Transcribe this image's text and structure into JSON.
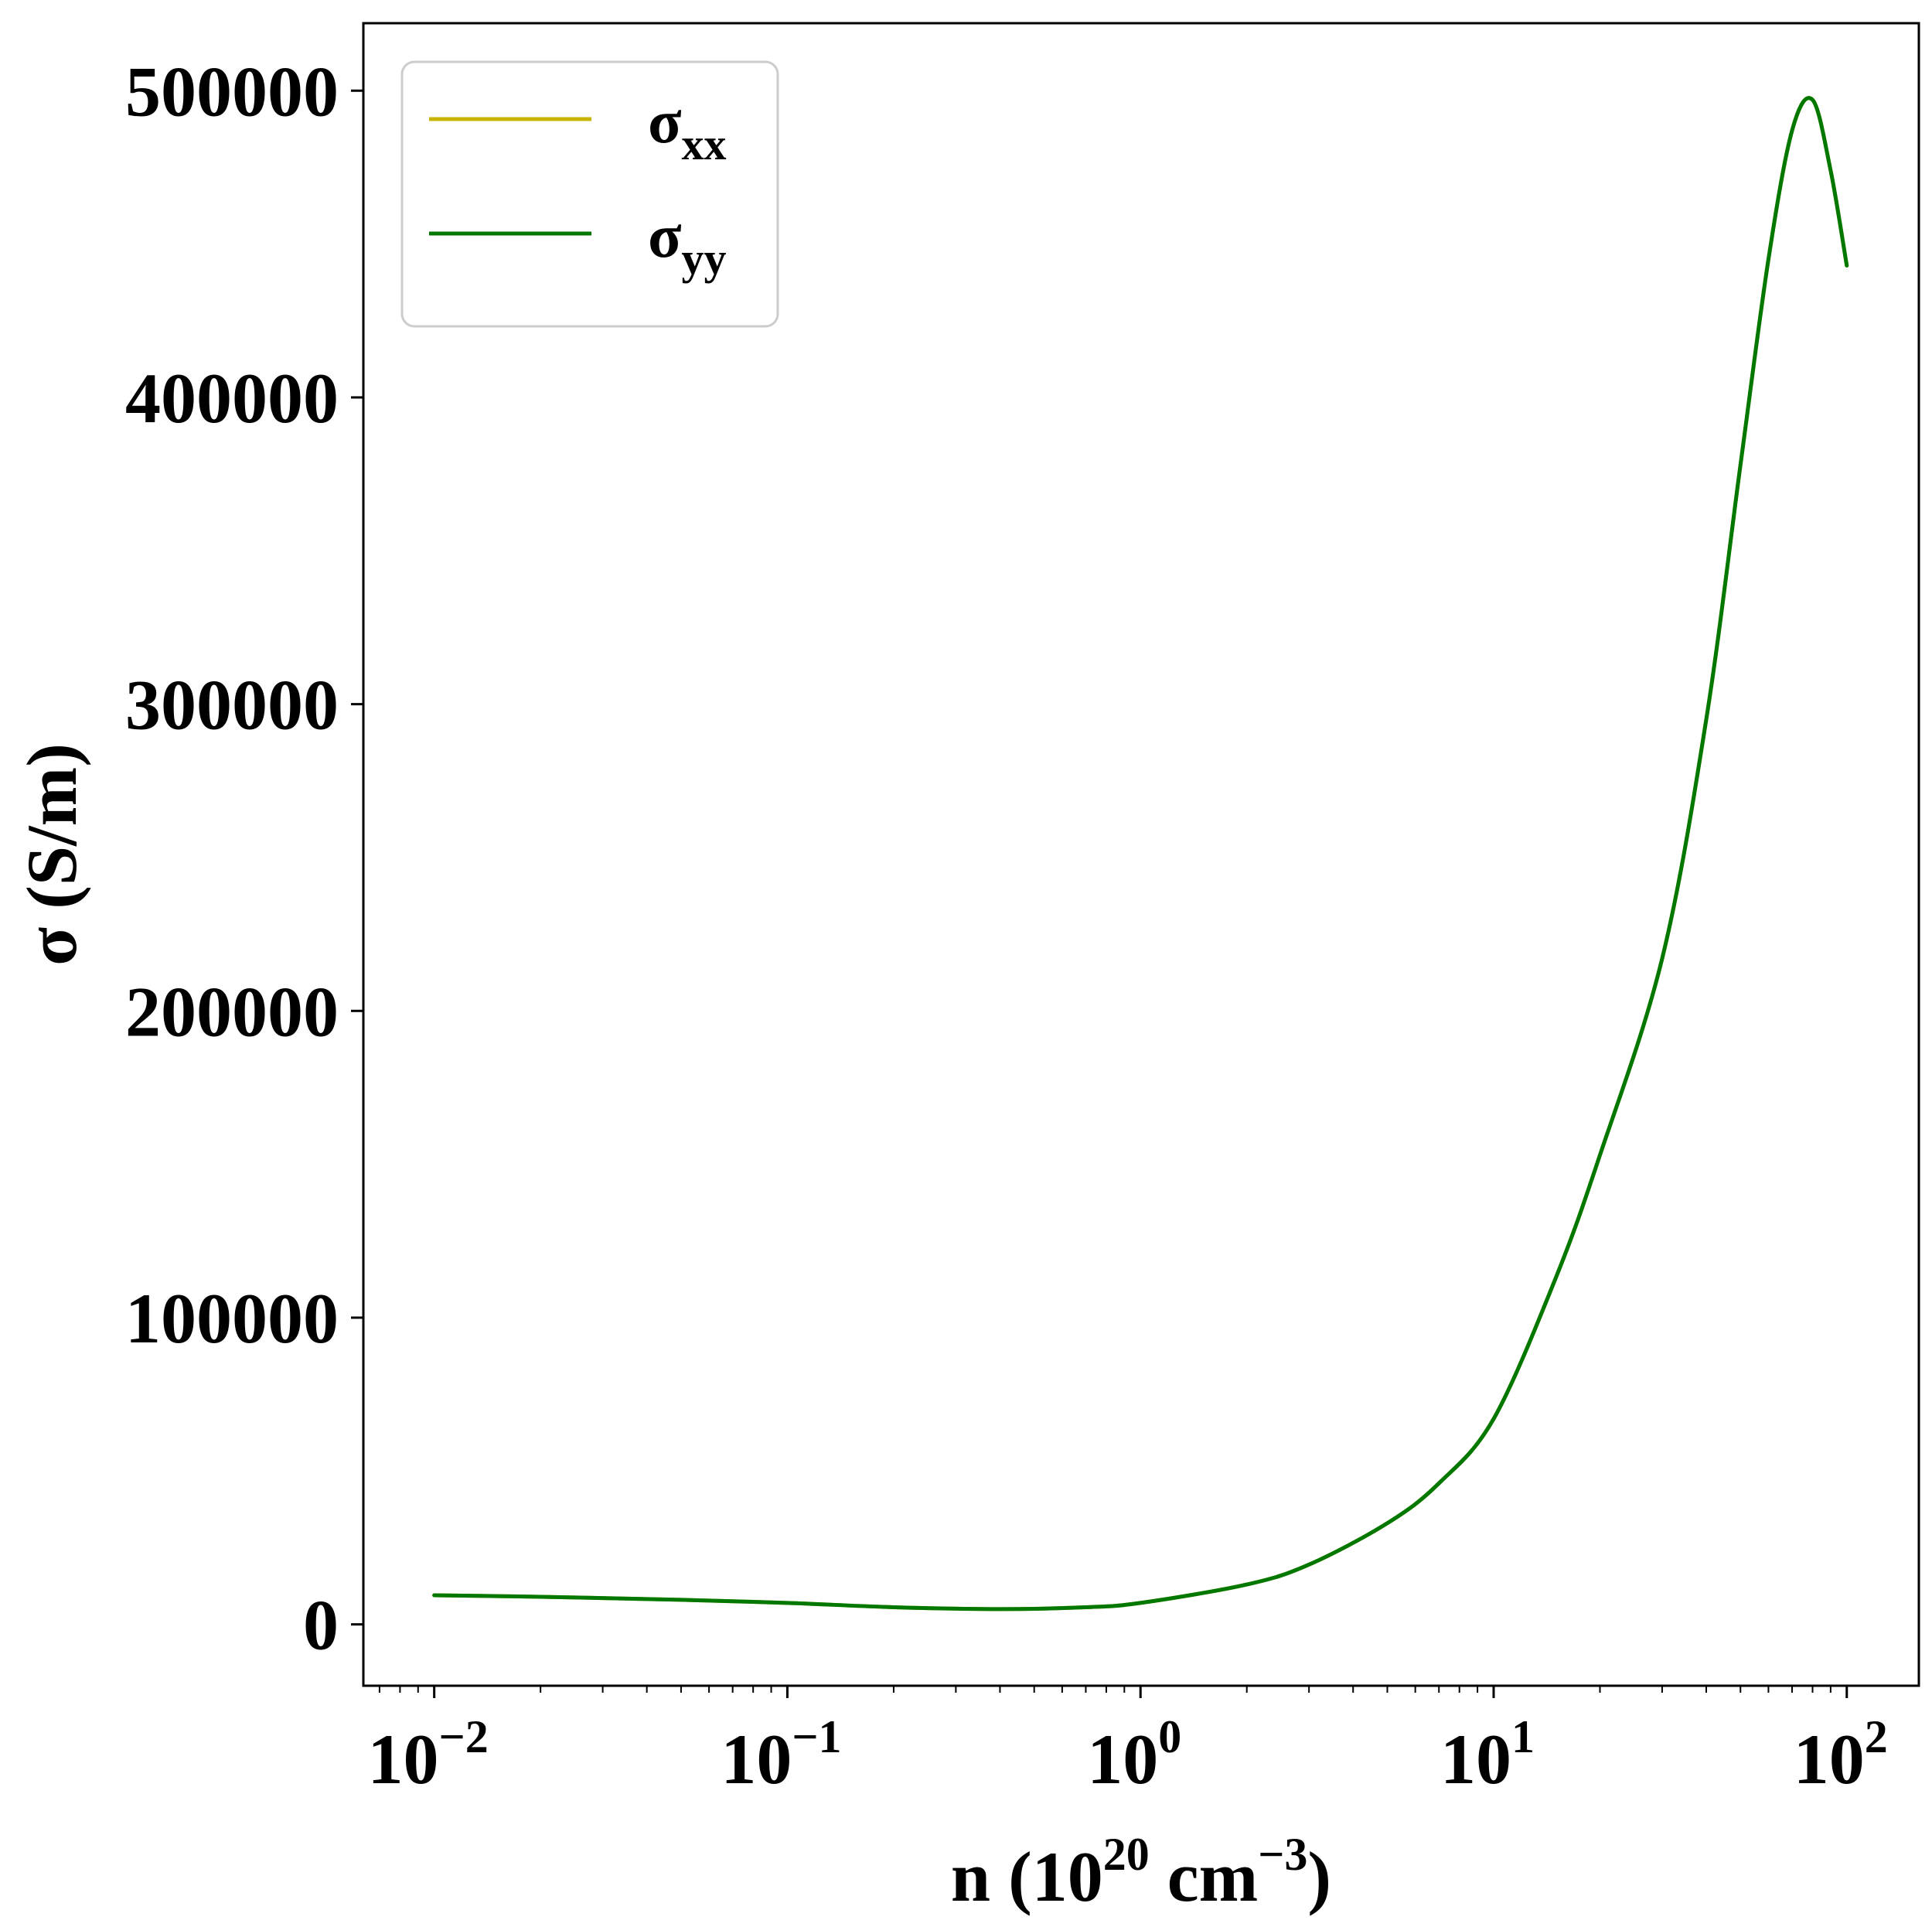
{
  "chart_data": {
    "type": "line",
    "xscale": "log",
    "xlim": [
      0.0063,
      160
    ],
    "ylim": [
      -20000,
      522000
    ],
    "grid": false,
    "legend_position": "top-left",
    "xlabel": {
      "prefix": "n (10",
      "exp1": "20",
      "mid": " cm",
      "exp2": "−3",
      "suffix": ")"
    },
    "ylabel": "σ (S/m)",
    "xticks": [
      {
        "value": 0.01,
        "base": "10",
        "exp": "−2"
      },
      {
        "value": 0.1,
        "base": "10",
        "exp": "−1"
      },
      {
        "value": 1,
        "base": "10",
        "exp": "0"
      },
      {
        "value": 10,
        "base": "10",
        "exp": "1"
      },
      {
        "value": 100,
        "base": "10",
        "exp": "2"
      }
    ],
    "yticks": [
      {
        "value": 0,
        "label": "0"
      },
      {
        "value": 100000,
        "label": "100000"
      },
      {
        "value": 200000,
        "label": "200000"
      },
      {
        "value": 300000,
        "label": "300000"
      },
      {
        "value": 400000,
        "label": "400000"
      },
      {
        "value": 500000,
        "label": "500000"
      }
    ],
    "series": [
      {
        "name": "σ",
        "name_sub": "xx",
        "color": "#c8b400",
        "x": [
          0.01,
          0.02,
          0.05,
          0.1,
          0.2,
          0.4,
          0.7,
          1,
          2,
          3,
          5,
          7,
          10,
          15,
          20,
          30,
          40,
          50,
          60,
          70,
          80,
          90,
          100
        ],
        "y": [
          9500,
          9000,
          8000,
          7000,
          5600,
          5000,
          5600,
          7000,
          13000,
          19500,
          33000,
          46000,
          67000,
          113000,
          153000,
          217000,
          295000,
          378000,
          445000,
          487000,
          497000,
          474000,
          443000
        ]
      },
      {
        "name": "σ",
        "name_sub": "yy",
        "color": "#007800",
        "x": [
          0.01,
          0.02,
          0.05,
          0.1,
          0.2,
          0.4,
          0.7,
          1,
          2,
          3,
          5,
          7,
          10,
          15,
          20,
          30,
          40,
          50,
          60,
          70,
          80,
          90,
          100
        ],
        "y": [
          9500,
          9000,
          8000,
          7000,
          5600,
          5000,
          5600,
          7000,
          13000,
          19500,
          33000,
          46000,
          67000,
          113000,
          153000,
          217000,
          295000,
          378000,
          445000,
          487000,
          497000,
          474000,
          443000
        ]
      }
    ]
  }
}
